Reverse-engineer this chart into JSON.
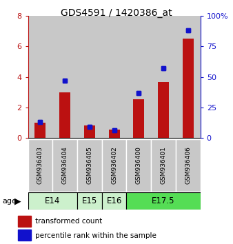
{
  "title": "GDS4591 / 1420386_at",
  "samples": [
    "GSM936403",
    "GSM936404",
    "GSM936405",
    "GSM936402",
    "GSM936400",
    "GSM936401",
    "GSM936406"
  ],
  "transformed_counts": [
    1.0,
    3.0,
    0.8,
    0.55,
    2.55,
    3.65,
    6.5
  ],
  "percentile_ranks": [
    13,
    47,
    9,
    6,
    37,
    57,
    88
  ],
  "ylim_left": [
    0,
    8
  ],
  "ylim_right": [
    0,
    100
  ],
  "yticks_left": [
    0,
    2,
    4,
    6,
    8
  ],
  "yticks_right": [
    0,
    25,
    50,
    75,
    100
  ],
  "ytick_labels_left": [
    "0",
    "2",
    "4",
    "6",
    "8"
  ],
  "ytick_labels_right": [
    "0",
    "25",
    "50",
    "75",
    "100%"
  ],
  "bar_color": "#bb1111",
  "dot_color": "#1111cc",
  "sample_bg_color": "#c8c8c8",
  "age_defs": [
    {
      "label": "E14",
      "start": 0,
      "end": 2,
      "color": "#ccf0cc"
    },
    {
      "label": "E15",
      "start": 2,
      "end": 3,
      "color": "#ccf0cc"
    },
    {
      "label": "E16",
      "start": 3,
      "end": 4,
      "color": "#ccf0cc"
    },
    {
      "label": "E17.5",
      "start": 4,
      "end": 7,
      "color": "#55dd55"
    }
  ],
  "legend_items": [
    {
      "color": "#bb1111",
      "label": "transformed count"
    },
    {
      "color": "#1111cc",
      "label": "percentile rank within the sample"
    }
  ],
  "fig_width": 3.38,
  "fig_height": 3.54,
  "dpi": 100
}
